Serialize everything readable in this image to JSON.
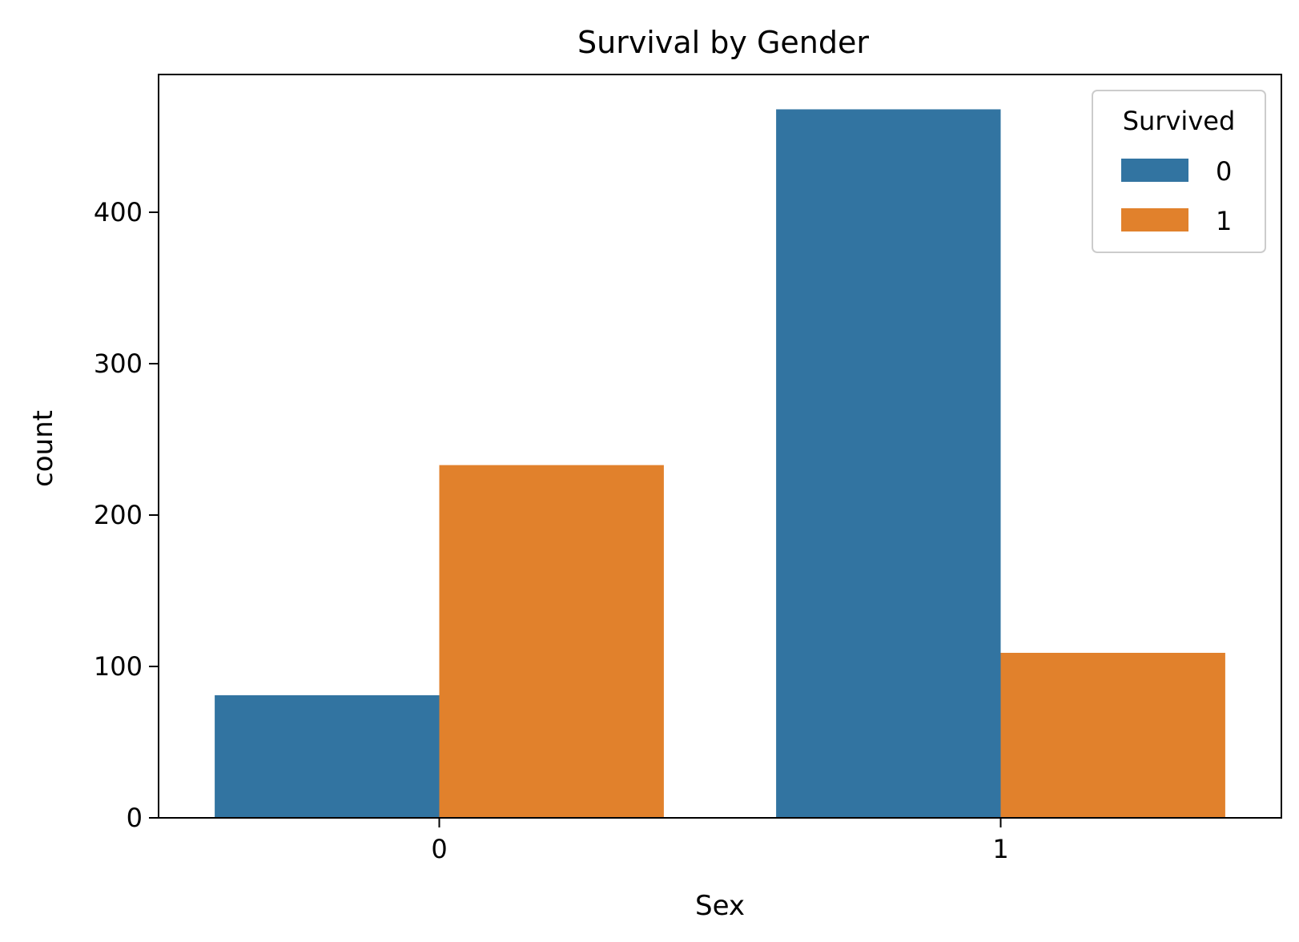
{
  "chart_data": {
    "type": "bar",
    "title": "Survival by Gender",
    "xlabel": "Sex",
    "ylabel": "count",
    "categories": [
      "0",
      "1"
    ],
    "series": [
      {
        "name": "0",
        "values": [
          81,
          468
        ],
        "color": "#3274a1"
      },
      {
        "name": "1",
        "values": [
          233,
          109
        ],
        "color": "#e1812c"
      }
    ],
    "ylim": [
      0,
      491
    ],
    "yticks": [
      0,
      100,
      200,
      300,
      400
    ],
    "grid": false,
    "legend": {
      "title": "Survived",
      "placement": "top-right"
    }
  }
}
